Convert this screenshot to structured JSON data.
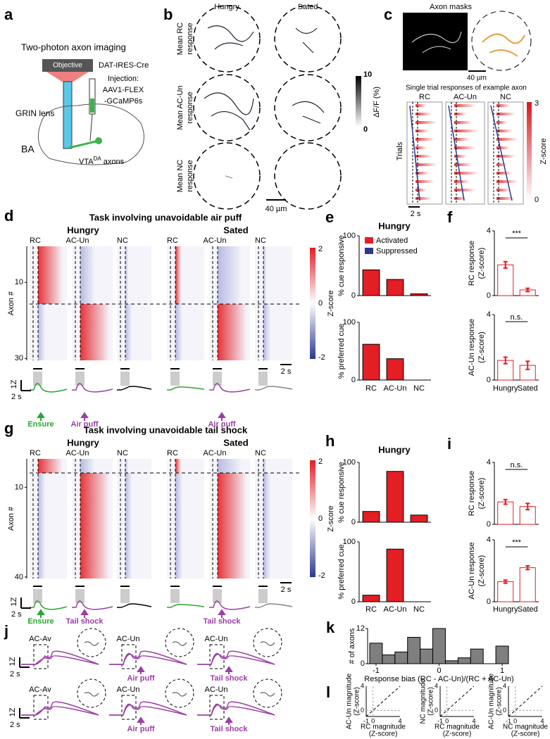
{
  "a": {
    "letter": "a",
    "title": "Two-photon axon imaging",
    "objective": "Objective",
    "mouse_line": "DAT-IRES-Cre",
    "injection": [
      "Injection:",
      "AAV1-FLEX",
      "-GCaMP6s"
    ],
    "lens": "GRIN lens",
    "region": "BA",
    "axons": [
      "VTA",
      "DA",
      " axons"
    ]
  },
  "b": {
    "letter": "b",
    "columns": [
      "Hungry",
      "Sated"
    ],
    "rows": [
      [
        "Mean RC",
        "response"
      ],
      [
        "Mean AC-Un",
        "response"
      ],
      [
        "Mean NC",
        "response"
      ]
    ],
    "colorbar_label": "ΔF/F (%)",
    "colorbar_ticks": [
      10,
      0
    ],
    "scale": "40 µm"
  },
  "c": {
    "letter": "c",
    "title": "Axon masks",
    "scale": "40 µm",
    "subtitle": "Single trial responses of example axon",
    "columns": [
      "RC",
      "AC-Un",
      "NC"
    ],
    "ylabel": "Trials",
    "time_scale": "2 s",
    "colorbar_label": "Z-score",
    "colorbar_ticks": [
      3,
      0
    ]
  },
  "d": {
    "letter": "d",
    "title": "Task involving unavoidable air puff",
    "groups": [
      "Hungry",
      "Sated"
    ],
    "columns": [
      "RC",
      "AC-Un",
      "NC"
    ],
    "ylabel": "Axon #",
    "ylim": [
      0.5,
      30.5
    ],
    "yticks": [
      10,
      30
    ],
    "colorbar_label": "Z-score",
    "colorbar_ticks": [
      2,
      0,
      -2
    ],
    "time_scale": "2 s",
    "trace_scale": [
      "1Z",
      "2 s"
    ],
    "stimuli": [
      "Ensure",
      "Air puff",
      "Air puff"
    ]
  },
  "e": {
    "letter": "e",
    "title": "Hungry",
    "legend": [
      {
        "name": "Activated",
        "color": "#e31e24"
      },
      {
        "name": "Suppressed",
        "color": "#2b3990"
      }
    ],
    "categories": [
      "RC",
      "AC-Un",
      "NC"
    ],
    "ylim": [
      0,
      100
    ],
    "yticks": [
      0,
      100
    ],
    "charts": [
      {
        "ylabel": "% cue responsive",
        "values": [
          43,
          27,
          3
        ]
      },
      {
        "ylabel": "% preferred cue",
        "values": [
          62,
          37,
          0
        ]
      }
    ]
  },
  "f": {
    "letter": "f",
    "categories": [
      "Hungry",
      "Sated"
    ],
    "ylim": [
      0,
      4
    ],
    "yticks": [
      0,
      4
    ],
    "color": "#e31e24",
    "charts": [
      {
        "ylabel": [
          "RC response",
          "(Z-score)"
        ],
        "values": [
          1.9,
          0.35
        ],
        "errors": [
          0.2,
          0.1
        ],
        "significance": "***"
      },
      {
        "ylabel": [
          "AC-Un response",
          "(Z-score)"
        ],
        "values": [
          1.2,
          0.9
        ],
        "errors": [
          0.2,
          0.25
        ],
        "significance": "n.s."
      }
    ]
  },
  "g": {
    "letter": "g",
    "title": "Task involving unavoidable tail shock",
    "groups": [
      "Hungry",
      "Sated"
    ],
    "columns": [
      "RC",
      "AC-Un",
      "NC"
    ],
    "ylabel": "Axon #",
    "ylim": [
      0.5,
      40.5
    ],
    "yticks": [
      10,
      40
    ],
    "colorbar_label": "Z-score",
    "colorbar_ticks": [
      2,
      0,
      -2
    ],
    "time_scale": "2 s",
    "trace_scale": [
      "1Z",
      "2 s"
    ],
    "stimuli": [
      "Ensure",
      "Tail shock",
      "Tail shock"
    ]
  },
  "h": {
    "letter": "h",
    "title": "Hungry",
    "categories": [
      "RC",
      "AC-Un",
      "NC"
    ],
    "color": "#e31e24",
    "ylim": [
      0,
      100
    ],
    "yticks": [
      0,
      100
    ],
    "charts": [
      {
        "ylabel": "% cue responsive",
        "values": [
          18,
          85,
          12
        ]
      },
      {
        "ylabel": "% preferred cue",
        "values": [
          11,
          88,
          0
        ]
      }
    ]
  },
  "i": {
    "letter": "i",
    "categories": [
      "Hungry",
      "Sated"
    ],
    "ylim": [
      0,
      4
    ],
    "yticks": [
      0,
      4
    ],
    "color": "#e31e24",
    "charts": [
      {
        "ylabel": [
          "RC response",
          "(Z-score)"
        ],
        "values": [
          1.45,
          1.15
        ],
        "errors": [
          0.15,
          0.2
        ],
        "significance": "n.s."
      },
      {
        "ylabel": [
          "AC-Un response",
          "(Z-score)"
        ],
        "values": [
          1.3,
          2.2
        ],
        "errors": [
          0.1,
          0.12
        ],
        "significance": "***"
      }
    ]
  },
  "j": {
    "letter": "j",
    "rows": [
      {
        "labels": [
          "AC-Av",
          "AC-Un",
          "AC-Un"
        ],
        "stimuli": [
          "Air puff",
          "Tail shock"
        ]
      },
      {
        "labels": [
          "AC-Av",
          "AC-Un",
          "AC-Un"
        ],
        "stimuli": [
          "Air puff",
          "Tail shock"
        ]
      }
    ],
    "trace_scale": [
      "1Z",
      "2 s"
    ]
  },
  "k": {
    "letter": "k",
    "bins": [
      -1.1,
      -0.9,
      -0.7,
      -0.5,
      -0.3,
      -0.1,
      0.1,
      0.3,
      0.5,
      0.7,
      0.9,
      1.1
    ],
    "counts": [
      7,
      3,
      4,
      9,
      5,
      12,
      1,
      2,
      5,
      0,
      6
    ],
    "color": "#7f7f7f",
    "xlim": [
      -1.1,
      1.1
    ],
    "xticks": [
      -1,
      0,
      1
    ],
    "ylim": [
      0,
      12
    ],
    "yticks": [
      0,
      12
    ],
    "ylabel": "# of axons",
    "xlabel": "Response bias (RC - AC-Un)/(RC + AC-Un)"
  },
  "l": {
    "letter": "l",
    "xlim": [
      -1,
      4
    ],
    "ylim": [
      -1,
      4
    ],
    "xticks": [
      -1,
      0,
      4
    ],
    "yticks": [
      0,
      4
    ],
    "plots": [
      {
        "xlabel": [
          "RC magnitude",
          "(Z-score)"
        ],
        "ylabel": [
          "AC-Un magnitude",
          "(Z-score)"
        ]
      },
      {
        "xlabel": [
          "RC magnitude",
          "(Z-score)"
        ],
        "ylabel": [
          "NC magnitude",
          "(Z-score)"
        ]
      },
      {
        "xlabel": [
          "NC magnitude",
          "(Z-score)"
        ],
        "ylabel": [
          "AC-Un magnitude",
          "(Z-score)"
        ]
      }
    ]
  }
}
